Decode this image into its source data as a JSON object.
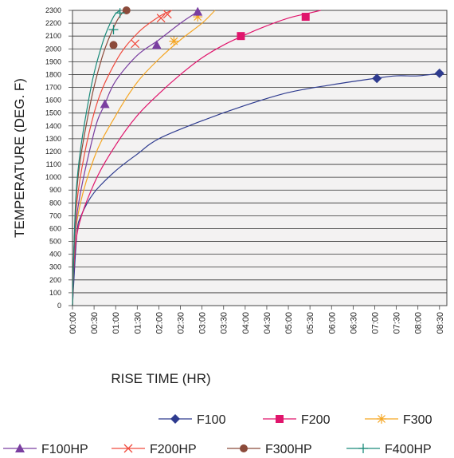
{
  "chart_data": {
    "type": "line",
    "xlabel": "RISE TIME (HR)",
    "ylabel": "TEMPERATURE (DEG. F)",
    "ylim": [
      0,
      2300
    ],
    "xlim": [
      0,
      8.67
    ],
    "grid": "horizontal",
    "y_ticks": [
      "0",
      "100",
      "200",
      "300",
      "400",
      "500",
      "600",
      "700",
      "800",
      "900",
      "1000",
      "1100",
      "1200",
      "1300",
      "1400",
      "1500",
      "1600",
      "1700",
      "1800",
      "1900",
      "2000",
      "2100",
      "2200",
      "2300"
    ],
    "x_ticks": [
      "00:00",
      "00:30",
      "01:00",
      "01:30",
      "02:00",
      "02:30",
      "03:00",
      "03:30",
      "04:00",
      "04:30",
      "05:00",
      "05:30",
      "06:00",
      "06:30",
      "07:00",
      "07:30",
      "08:00",
      "08:30"
    ],
    "legend_position": "bottom",
    "series": [
      {
        "name": "F100",
        "color": "#2e3b8f",
        "marker": "diamond",
        "x": [
          0,
          0.1,
          0.2,
          0.5,
          1.0,
          1.5,
          2.0,
          3.0,
          4.0,
          5.0,
          6.0,
          7.0,
          7.5,
          8.0,
          8.5
        ],
        "y": [
          0,
          550,
          700,
          880,
          1050,
          1180,
          1300,
          1440,
          1560,
          1660,
          1720,
          1770,
          1790,
          1790,
          1810
        ],
        "marker_points": [
          [
            7.05,
            1770
          ],
          [
            8.5,
            1810
          ]
        ]
      },
      {
        "name": "F200",
        "color": "#e0156c",
        "marker": "square",
        "x": [
          0,
          0.1,
          0.5,
          1.0,
          1.5,
          2.0,
          2.5,
          3.0,
          3.5,
          4.0,
          4.5,
          5.0,
          5.5,
          5.75
        ],
        "y": [
          0,
          550,
          950,
          1250,
          1480,
          1650,
          1800,
          1930,
          2030,
          2110,
          2180,
          2240,
          2280,
          2300
        ],
        "marker_points": [
          [
            3.9,
            2100
          ],
          [
            5.4,
            2250
          ]
        ]
      },
      {
        "name": "F300",
        "color": "#f5a623",
        "marker": "asterisk",
        "x": [
          0,
          0.1,
          0.5,
          1.0,
          1.5,
          2.0,
          2.5,
          3.0,
          3.3
        ],
        "y": [
          0,
          650,
          1150,
          1480,
          1740,
          1920,
          2070,
          2200,
          2300
        ],
        "marker_points": [
          [
            2.35,
            2060
          ],
          [
            2.9,
            2250
          ]
        ]
      },
      {
        "name": "F100HP",
        "color": "#7a3ea0",
        "marker": "triangle",
        "x": [
          0,
          0.1,
          0.5,
          0.75,
          1.0,
          1.5,
          2.0,
          2.5,
          2.9
        ],
        "y": [
          0,
          700,
          1350,
          1570,
          1750,
          1950,
          2070,
          2200,
          2290
        ],
        "marker_points": [
          [
            0.75,
            1570
          ],
          [
            1.95,
            2030
          ],
          [
            2.9,
            2290
          ]
        ]
      },
      {
        "name": "F200HP",
        "color": "#f04b3e",
        "marker": "x",
        "x": [
          0,
          0.1,
          0.5,
          1.0,
          1.5,
          2.0,
          2.3
        ],
        "y": [
          0,
          800,
          1500,
          1900,
          2120,
          2250,
          2300
        ],
        "marker_points": [
          [
            1.45,
            2040
          ],
          [
            2.05,
            2240
          ],
          [
            2.2,
            2270
          ]
        ]
      },
      {
        "name": "F300HP",
        "color": "#8b4a3a",
        "marker": "circle",
        "x": [
          0,
          0.1,
          0.4,
          0.7,
          1.0,
          1.2
        ],
        "y": [
          0,
          900,
          1550,
          1950,
          2200,
          2300
        ],
        "marker_points": [
          [
            0.95,
            2030
          ],
          [
            1.25,
            2300
          ]
        ]
      },
      {
        "name": "F400HP",
        "color": "#1a8a7a",
        "marker": "plus",
        "x": [
          0,
          0.1,
          0.4,
          0.7,
          0.95,
          1.1
        ],
        "y": [
          0,
          950,
          1650,
          2050,
          2250,
          2300
        ],
        "marker_points": [
          [
            0.95,
            2150
          ],
          [
            1.1,
            2280
          ]
        ]
      }
    ]
  }
}
